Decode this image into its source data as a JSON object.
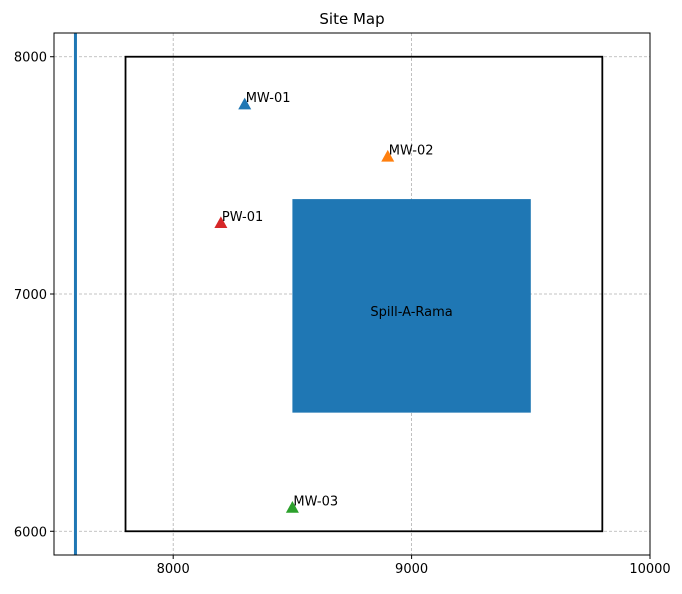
{
  "chart_data": {
    "type": "scatter",
    "title": "Site Map",
    "xlabel": "",
    "ylabel": "",
    "xlim": [
      7500,
      10000
    ],
    "ylim": [
      5900,
      8100
    ],
    "x_ticks": [
      8000,
      9000,
      10000
    ],
    "x_tick_labels": [
      "8000",
      "9000",
      "10000"
    ],
    "y_ticks": [
      6000,
      7000,
      8000
    ],
    "y_tick_labels": [
      "6000",
      "7000",
      "8000"
    ],
    "grid": true,
    "site_boundary": {
      "x": [
        7800,
        9800
      ],
      "y": [
        6000,
        8000
      ],
      "color": "#000000"
    },
    "vertical_line": {
      "x": 7590,
      "color": "#1f77b4"
    },
    "area": {
      "label": "Spill-A-Rama",
      "x": [
        8500,
        9500
      ],
      "y": [
        6500,
        7400
      ],
      "color": "#1f77b4"
    },
    "points": [
      {
        "label": "MW-01",
        "x": 8300,
        "y": 7800,
        "color": "#1f77b4"
      },
      {
        "label": "MW-02",
        "x": 8900,
        "y": 7580,
        "color": "#ff7f0e"
      },
      {
        "label": "PW-01",
        "x": 8200,
        "y": 7300,
        "color": "#d62728"
      },
      {
        "label": "MW-03",
        "x": 8500,
        "y": 6100,
        "color": "#2ca02c"
      }
    ]
  }
}
